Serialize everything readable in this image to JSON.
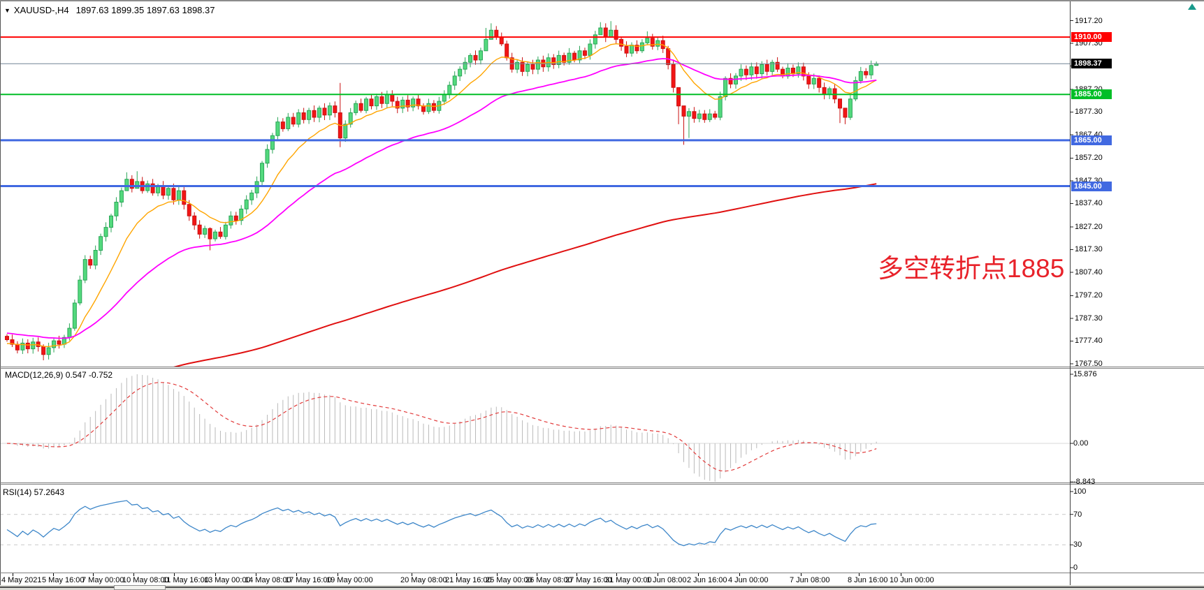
{
  "header": {
    "symbol": "XAUUSD-,H4",
    "ohlc": "1897.63 1899.35 1897.63 1898.37",
    "dropdown_icon": "▼"
  },
  "annotation": {
    "text": "多空转折点1885",
    "color": "#e8222a"
  },
  "indicators": {
    "macd": {
      "label": "MACD(12,26,9) 0.547 -0.752",
      "value_macd": 0.547,
      "value_signal": -0.752,
      "axis": [
        "15.876",
        "0.00",
        "-8.843"
      ],
      "axis_values": [
        15.876,
        0,
        -8.843
      ]
    },
    "rsi": {
      "label": "RSI(14) 57.2643",
      "value": 57.2643,
      "axis": [
        "100",
        "70",
        "30",
        "0"
      ],
      "axis_values": [
        100,
        70,
        30,
        0
      ],
      "levels": [
        70,
        30
      ]
    }
  },
  "lines": [
    {
      "price": 1910.0,
      "label": "1910.00",
      "color": "#ff0000",
      "width": 2
    },
    {
      "price": 1885.0,
      "label": "1885.00",
      "color": "#00be26",
      "width": 2
    },
    {
      "price": 1865.0,
      "label": "1865.00",
      "color": "#4169e1",
      "width": 3
    },
    {
      "price": 1845.0,
      "label": "1845.00",
      "color": "#4169e1",
      "width": 3
    }
  ],
  "current_price": {
    "value": 1898.37,
    "label": "1898.37",
    "line_color": "#718496",
    "badge_bg": "#000000"
  },
  "colors": {
    "candle_up_fill": "#53d97d",
    "candle_up_stroke": "#2aa557",
    "candle_down_fill": "#f21515",
    "candle_down_stroke": "#ca1212",
    "ma_fast": "#ffa500",
    "ma_mid": "#ff00ff",
    "ma_slow": "#e01010",
    "macd_hist": "#bababa",
    "macd_signal": "#e23b3b",
    "rsi_line": "#3e87c9",
    "rsi_levels": "#c9c9c9",
    "panel_border": "#808080",
    "axis_line": "#404040"
  },
  "chart_data": {
    "type": "candlestick",
    "symbol": "XAUUSD",
    "timeframe": "H4",
    "ylim": [
      1767.5,
      1917.2
    ],
    "price_ticks": [
      "1917.20",
      "1907.30",
      "1897.40",
      "1887.20",
      "1877.30",
      "1867.40",
      "1857.20",
      "1847.30",
      "1837.40",
      "1827.20",
      "1817.30",
      "1807.40",
      "1797.20",
      "1787.30",
      "1777.40",
      "1767.50"
    ],
    "time_labels": [
      "4 May 2021",
      "5 May 16:00",
      "7 May 00:00",
      "10 May 08:00",
      "11 May 16:00",
      "13 May 00:00",
      "14 May 08:00",
      "17 May 16:00",
      "19 May 00:00",
      "20 May 08:00",
      "21 May 16:00",
      "25 May 00:00",
      "26 May 08:00",
      "27 May 16:00",
      "31 May 00:00",
      "1 Jun 08:00",
      "2 Jun 16:00",
      "4 Jun 00:00",
      "7 Jun 08:00",
      "8 Jun 16:00",
      "10 Jun 00:00"
    ],
    "first_open": 1779.5,
    "closes": [
      1778,
      1776,
      1773.5,
      1776.5,
      1774,
      1777,
      1775,
      1771.5,
      1774.5,
      1777.5,
      1776,
      1779,
      1783,
      1794,
      1804,
      1813,
      1810.5,
      1817,
      1823,
      1827,
      1832,
      1838,
      1843,
      1848,
      1844,
      1847,
      1843,
      1846,
      1842,
      1845,
      1841,
      1844,
      1839,
      1843,
      1837,
      1832,
      1828,
      1824,
      1826.5,
      1822,
      1825,
      1823,
      1828,
      1832,
      1830,
      1835,
      1839,
      1842,
      1847,
      1855,
      1861,
      1867,
      1873,
      1870,
      1875,
      1872,
      1877,
      1874,
      1878,
      1875,
      1879,
      1876,
      1880,
      1877,
      1866,
      1872,
      1877,
      1881,
      1878,
      1883,
      1880,
      1884,
      1881,
      1885,
      1882,
      1879,
      1882.5,
      1879.5,
      1883,
      1880,
      1877.5,
      1881,
      1878,
      1882,
      1885,
      1889,
      1893,
      1896,
      1899,
      1902,
      1900,
      1904,
      1909,
      1913,
      1910,
      1907,
      1901,
      1896,
      1899,
      1895,
      1898,
      1896,
      1900,
      1897,
      1901,
      1898,
      1902,
      1899,
      1903,
      1900,
      1904,
      1902,
      1907,
      1911,
      1914,
      1910,
      1913,
      1909,
      1906,
      1903,
      1906.5,
      1904,
      1907.5,
      1909.5,
      1906,
      1908.5,
      1905,
      1898,
      1888,
      1880,
      1875.5,
      1877.5,
      1874.5,
      1876.5,
      1874,
      1876.5,
      1875,
      1884,
      1892,
      1889.5,
      1893,
      1896,
      1893.5,
      1897,
      1894,
      1898,
      1895,
      1899,
      1896,
      1893,
      1896.5,
      1894,
      1897,
      1893,
      1889.5,
      1892,
      1888,
      1885,
      1887.5,
      1883,
      1879,
      1875,
      1883,
      1891,
      1895,
      1893.5,
      1897.63,
      1898.37
    ],
    "wick_overrides": {
      "7": [
        1776,
        1769
      ],
      "23": [
        1851,
        1846
      ],
      "25": [
        1851.5,
        1844
      ],
      "39": [
        1827,
        1817
      ],
      "64": [
        1890,
        1862
      ],
      "92": [
        1914,
        1906
      ],
      "93": [
        1916,
        1910
      ],
      "114": [
        1916.5,
        1911
      ],
      "116": [
        1917,
        1910
      ],
      "123": [
        1912.5,
        1906.5
      ],
      "129": [
        1883,
        1872
      ],
      "130": [
        1878,
        1863
      ],
      "131": [
        1879,
        1866
      ],
      "160": [
        1881,
        1872.5
      ],
      "161": [
        1877.5,
        1872
      ],
      "167": [
        1899.35,
        1897.63
      ]
    },
    "moving_averages": [
      {
        "name": "fast-ma",
        "color": "#ffa500",
        "period": 12,
        "seed": 1776,
        "width": 1.4
      },
      {
        "name": "mid-ma",
        "color": "#ff00ff",
        "period": 40,
        "seed": 1781,
        "width": 1.8
      },
      {
        "name": "slow-ma",
        "color": "#e01010",
        "period": 250,
        "seed": 1752,
        "width": 2
      }
    ],
    "macd": {
      "fast": 12,
      "slow": 26,
      "signal": 9,
      "max": 15.876,
      "min": -8.843
    },
    "rsi": {
      "period": 14,
      "current": 57.2643
    }
  }
}
